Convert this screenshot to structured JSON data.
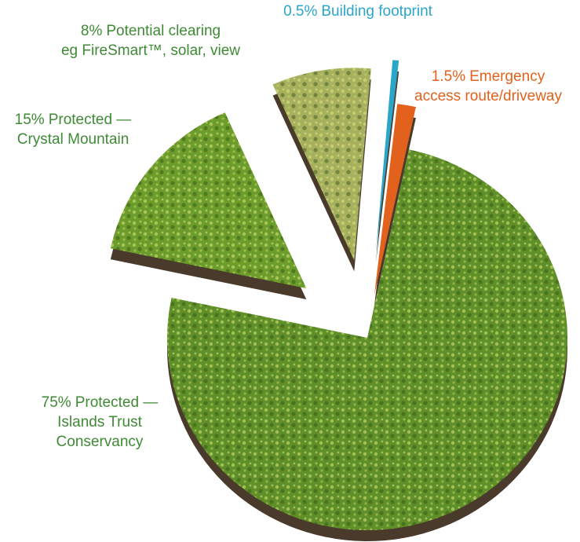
{
  "chart_data": {
    "type": "pie",
    "categories": [
      [
        "Protected —",
        "Islands Trust",
        "Conservancy"
      ],
      [
        "Protected —",
        "Crystal Mountain"
      ],
      [
        "Potential clearing",
        "eg FireSmart™, solar, view"
      ],
      [
        "Building footprint"
      ],
      [
        "Emergency",
        "access route/driveway"
      ]
    ],
    "values": [
      75,
      15,
      8,
      0.5,
      1.5
    ],
    "value_labels": [
      "75%",
      "15%",
      "8%",
      "0.5%",
      "1.5%"
    ],
    "colors": [
      "#5f8f28",
      "#6c9c2c",
      "#a7b05e",
      "#2aa6c9",
      "#e2611c"
    ]
  }
}
